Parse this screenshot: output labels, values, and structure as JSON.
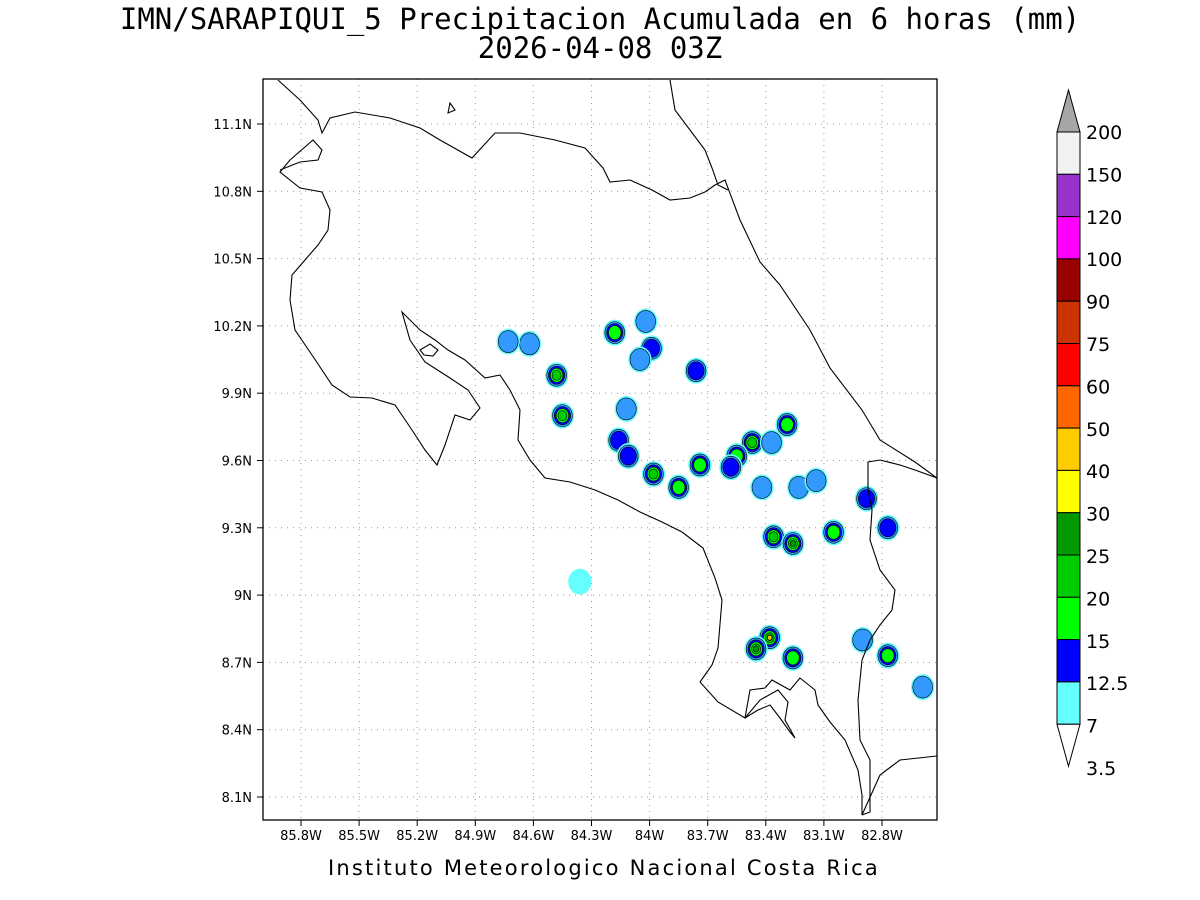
{
  "title": {
    "line1": "IMN/SARAPIQUI_5 Precipitacion Acumulada en 6 horas (mm)",
    "line2": "2026-04-08 03Z"
  },
  "footer": "Instituto Meteorologico Nacional Costa Rica",
  "map": {
    "lon_labels": [
      "85.8W",
      "85.5W",
      "85.2W",
      "84.9W",
      "84.6W",
      "84.3W",
      "84W",
      "83.7W",
      "83.4W",
      "83.1W",
      "82.8W"
    ],
    "lat_labels": [
      "11.1N",
      "10.8N",
      "10.5N",
      "10.2N",
      "9.9N",
      "9.6N",
      "9.3N",
      "9N",
      "8.7N",
      "8.4N",
      "8.1N"
    ]
  },
  "colorbar": {
    "levels": [
      "3.5",
      "7",
      "12.5",
      "15",
      "20",
      "25",
      "30",
      "40",
      "50",
      "60",
      "75",
      "90",
      "100",
      "120",
      "150",
      "200"
    ],
    "colors": [
      "#66ffff",
      "#3399ff",
      "#0000ff",
      "#00ff00",
      "#00cc00",
      "#009900",
      "#ffff00",
      "#ffcc00",
      "#ff6600",
      "#ff0000",
      "#cc3300",
      "#990000",
      "#ff00ff",
      "#9933cc",
      "#f2f2f2",
      "#a6a6a6"
    ]
  },
  "precip_cells": [
    {
      "lon": -84.48,
      "lat": 9.98,
      "level": 4
    },
    {
      "lon": -84.45,
      "lat": 9.8,
      "level": 4
    },
    {
      "lon": -84.18,
      "lat": 10.17,
      "level": 3
    },
    {
      "lon": -83.99,
      "lat": 10.1,
      "level": 2
    },
    {
      "lon": -84.05,
      "lat": 10.05,
      "level": 1
    },
    {
      "lon": -83.76,
      "lat": 10.0,
      "level": 2
    },
    {
      "lon": -83.98,
      "lat": 9.54,
      "level": 4
    },
    {
      "lon": -83.85,
      "lat": 9.48,
      "level": 3
    },
    {
      "lon": -83.74,
      "lat": 9.58,
      "level": 3
    },
    {
      "lon": -84.16,
      "lat": 9.69,
      "level": 2
    },
    {
      "lon": -84.11,
      "lat": 9.62,
      "level": 2
    },
    {
      "lon": -83.47,
      "lat": 9.68,
      "level": 4
    },
    {
      "lon": -83.55,
      "lat": 9.62,
      "level": 3
    },
    {
      "lon": -83.58,
      "lat": 9.57,
      "level": 2
    },
    {
      "lon": -83.29,
      "lat": 9.76,
      "level": 3
    },
    {
      "lon": -83.37,
      "lat": 9.68,
      "level": 1
    },
    {
      "lon": -83.42,
      "lat": 9.48,
      "level": 1
    },
    {
      "lon": -83.23,
      "lat": 9.48,
      "level": 1
    },
    {
      "lon": -82.88,
      "lat": 9.43,
      "level": 2
    },
    {
      "lon": -83.05,
      "lat": 9.28,
      "level": 3
    },
    {
      "lon": -83.36,
      "lat": 9.26,
      "level": 4
    },
    {
      "lon": -83.26,
      "lat": 9.23,
      "level": 5
    },
    {
      "lon": -83.38,
      "lat": 8.81,
      "level": 7
    },
    {
      "lon": -83.45,
      "lat": 8.76,
      "level": 5
    },
    {
      "lon": -83.26,
      "lat": 8.72,
      "level": 3
    },
    {
      "lon": -82.77,
      "lat": 8.73,
      "level": 3
    },
    {
      "lon": -82.77,
      "lat": 9.3,
      "level": 2
    },
    {
      "lon": -82.59,
      "lat": 8.59,
      "level": 1
    },
    {
      "lon": -82.9,
      "lat": 8.8,
      "level": 1
    },
    {
      "lon": -83.14,
      "lat": 9.51,
      "level": 1
    },
    {
      "lon": -84.36,
      "lat": 9.06,
      "level": 0
    },
    {
      "lon": -84.62,
      "lat": 10.12,
      "level": 1
    },
    {
      "lon": -84.73,
      "lat": 10.13,
      "level": 1
    },
    {
      "lon": -84.12,
      "lat": 9.83,
      "level": 1
    },
    {
      "lon": -84.02,
      "lat": 10.22,
      "level": 1
    }
  ]
}
